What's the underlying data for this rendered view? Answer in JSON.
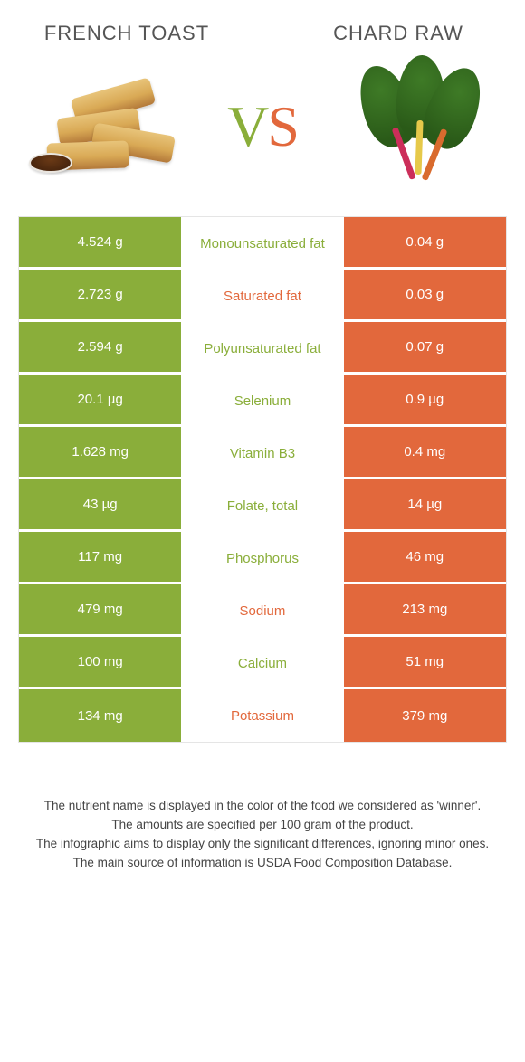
{
  "header": {
    "left_title": "FRENCH TOAST",
    "right_title": "CHARD RAW",
    "vs_v": "V",
    "vs_s": "S"
  },
  "colors": {
    "left_food": "#8aae3a",
    "right_food": "#e2683c",
    "left_cell_bg": "#8aae3a",
    "right_cell_bg": "#e2683c",
    "cell_text": "#ffffff",
    "mid_bg": "#ffffff"
  },
  "nutrients": [
    {
      "name": "Monounsaturated fat",
      "left": "4.524 g",
      "right": "0.04 g",
      "winner": "left"
    },
    {
      "name": "Saturated fat",
      "left": "2.723 g",
      "right": "0.03 g",
      "winner": "right"
    },
    {
      "name": "Polyunsaturated fat",
      "left": "2.594 g",
      "right": "0.07 g",
      "winner": "left"
    },
    {
      "name": "Selenium",
      "left": "20.1 µg",
      "right": "0.9 µg",
      "winner": "left"
    },
    {
      "name": "Vitamin B3",
      "left": "1.628 mg",
      "right": "0.4 mg",
      "winner": "left"
    },
    {
      "name": "Folate, total",
      "left": "43 µg",
      "right": "14 µg",
      "winner": "left"
    },
    {
      "name": "Phosphorus",
      "left": "117 mg",
      "right": "46 mg",
      "winner": "left"
    },
    {
      "name": "Sodium",
      "left": "479 mg",
      "right": "213 mg",
      "winner": "right"
    },
    {
      "name": "Calcium",
      "left": "100 mg",
      "right": "51 mg",
      "winner": "left"
    },
    {
      "name": "Potassium",
      "left": "134 mg",
      "right": "379 mg",
      "winner": "right"
    }
  ],
  "footer": {
    "line1": "The nutrient name is displayed in the color of the food we considered as 'winner'.",
    "line2": "The amounts are specified per 100 gram of the product.",
    "line3": "The infographic aims to display only the significant differences, ignoring minor ones.",
    "line4": "The main source of information is USDA Food Composition Database."
  }
}
